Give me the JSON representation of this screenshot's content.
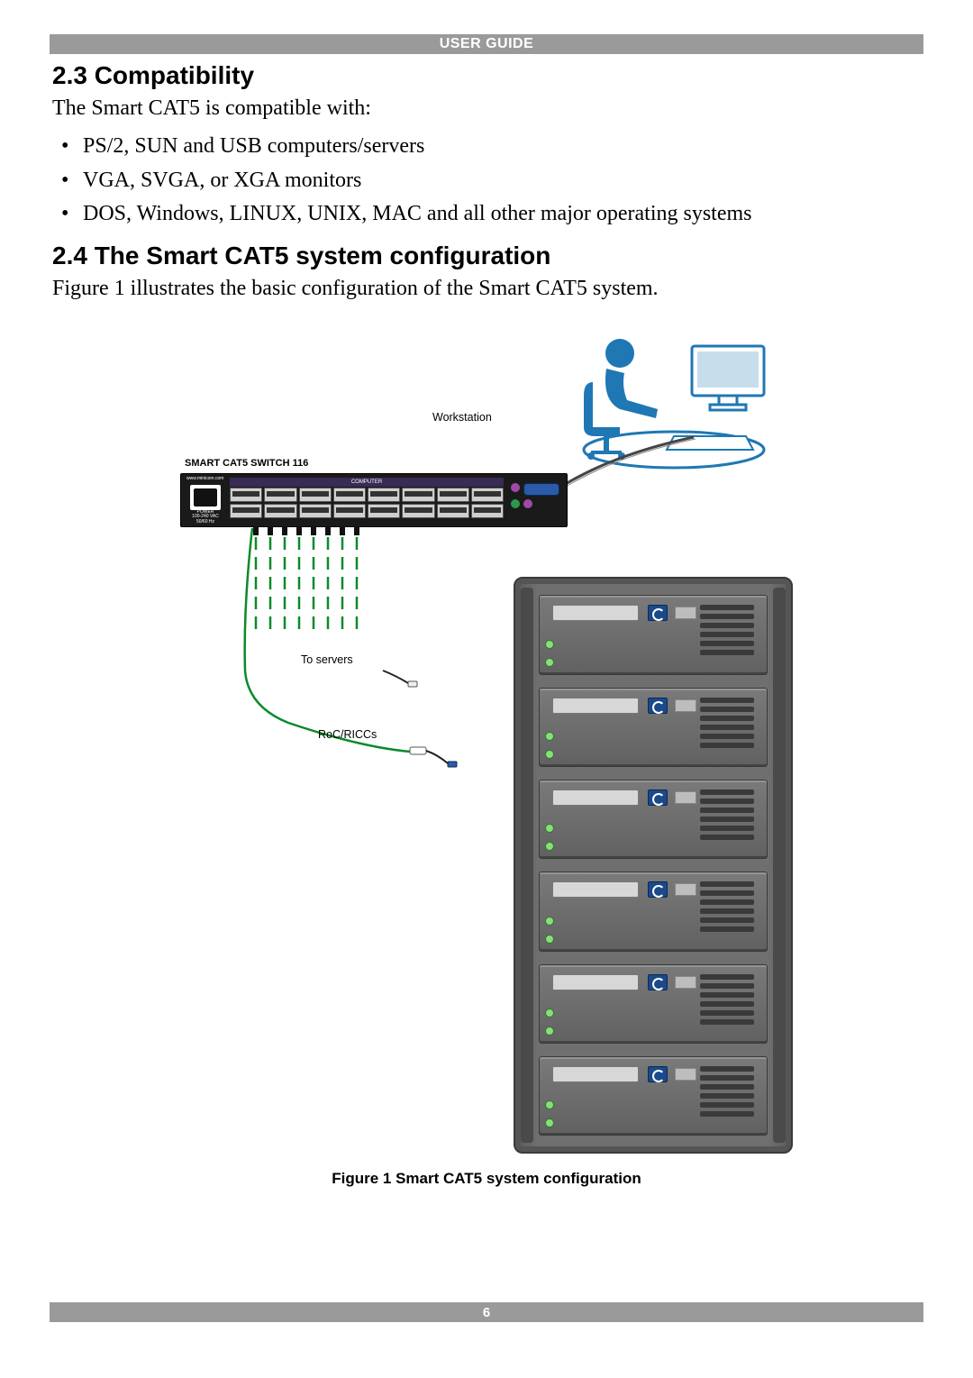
{
  "header": {
    "title": "USER GUIDE"
  },
  "section1": {
    "heading": "2.3 Compatibility",
    "intro": "The Smart CAT5 is compatible with:",
    "bullets": [
      "PS/2, SUN and USB computers/servers",
      "VGA, SVGA, or XGA monitors",
      "DOS, Windows, LINUX, UNIX, MAC and all other major operating systems"
    ]
  },
  "section2": {
    "heading": "2.4 The Smart CAT5 system configuration",
    "intro": "Figure 1 illustrates the basic configuration of the Smart CAT5 system."
  },
  "figure": {
    "caption": "Figure 1 Smart CAT5 system configuration",
    "workstation_label": "Workstation",
    "switch_label": "SMART CAT5 SWITCH 116",
    "switch_band": "COMPUTER",
    "switch_power": "POWER",
    "switch_power_spec": "100-240 VAC 50/60 Hz",
    "switch_url": "www.minicom.com",
    "to_servers_label": "To servers",
    "roc_label": "RoC/RICCs",
    "port_count_per_row": 8,
    "server_units": 6,
    "colors": {
      "header_bar": "#9a9a9a",
      "header_text": "#ffffff",
      "workstation_stroke": "#1f77b4",
      "switch_body": "#1a1a1a",
      "switch_band": "#3a2a56",
      "vga": "#2a5aa8",
      "ps2_purple": "#a04aa8",
      "ps2_green": "#2a9a4a",
      "cable_green": "#0a8a2a",
      "cable_black": "#111111",
      "rack_body": "#6f6f6f",
      "rack_border": "#3a3a3a",
      "unit_badge": "#1a4a8a",
      "unit_led": "#8bdc7a"
    }
  },
  "footer": {
    "page": "6"
  }
}
